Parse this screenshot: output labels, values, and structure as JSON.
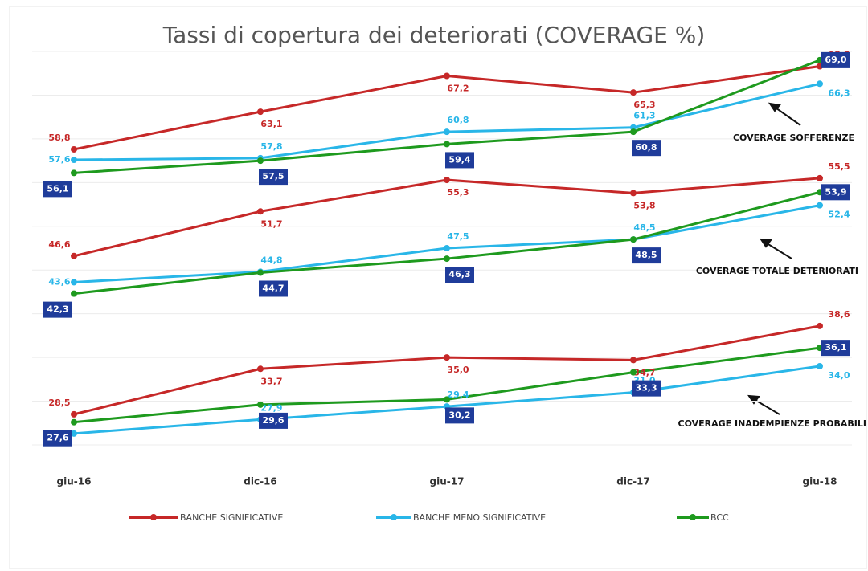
{
  "chart_data": {
    "type": "line",
    "title": "Tassi di copertura dei deteriorati (COVERAGE %)",
    "categories": [
      "giu-16",
      "dic-16",
      "giu-17",
      "dic-17",
      "giu-18"
    ],
    "groups": [
      "COVERAGE SOFFERENZE",
      "COVERAGE TOTALE DETERIORATI",
      "COVERAGE INADEMPIENZE PROBABILI"
    ],
    "series": [
      {
        "name": "BANCHE SIGNIFICATIVE",
        "color": "#c62828",
        "values": [
          [
            58.8,
            63.1,
            67.2,
            65.3,
            68.3
          ],
          [
            46.6,
            51.7,
            55.3,
            53.8,
            55.5
          ],
          [
            28.5,
            33.7,
            35.0,
            34.7,
            38.6
          ]
        ],
        "value_labels": [
          [
            "58,8",
            "63,1",
            "67,2",
            "65,3",
            "68,3"
          ],
          [
            "46,6",
            "51,7",
            "55,3",
            "53,8",
            "55,5"
          ],
          [
            "28,5",
            "33,7",
            "35,0",
            "34,7",
            "38,6"
          ]
        ]
      },
      {
        "name": "BANCHE MENO SIGNIFICATIVE",
        "color": "#29b6e8",
        "values": [
          [
            57.6,
            57.8,
            60.8,
            61.3,
            66.3
          ],
          [
            43.6,
            44.8,
            47.5,
            48.5,
            52.4
          ],
          [
            26.3,
            27.9,
            29.4,
            31.0,
            34.0
          ]
        ],
        "value_labels": [
          [
            "57,6",
            "57,8",
            "60,8",
            "61,3",
            "66,3"
          ],
          [
            "43,6",
            "44,8",
            "47,5",
            "48,5",
            "52,4"
          ],
          [
            "26,3",
            "27,9",
            "29,4",
            "31,0",
            "34,0"
          ]
        ]
      },
      {
        "name": "BCC",
        "color": "#1e9a1e",
        "values": [
          [
            56.1,
            57.5,
            59.4,
            60.8,
            69.0
          ],
          [
            42.3,
            44.7,
            46.3,
            48.5,
            53.9
          ],
          [
            27.6,
            29.6,
            30.2,
            33.3,
            36.1
          ]
        ],
        "value_labels": [
          [
            "56,1",
            "57,5",
            "59,4",
            "60,8",
            "69,0"
          ],
          [
            "42,3",
            "44,7",
            "46,3",
            "48,5",
            "53,9"
          ],
          [
            "27,6",
            "29,6",
            "30,2",
            "33,3",
            "36,1"
          ]
        ]
      }
    ],
    "ylim": [
      25,
      70
    ],
    "yticks": [
      25,
      30,
      35,
      40,
      45,
      50,
      55,
      60,
      65,
      70
    ],
    "grid": true
  }
}
